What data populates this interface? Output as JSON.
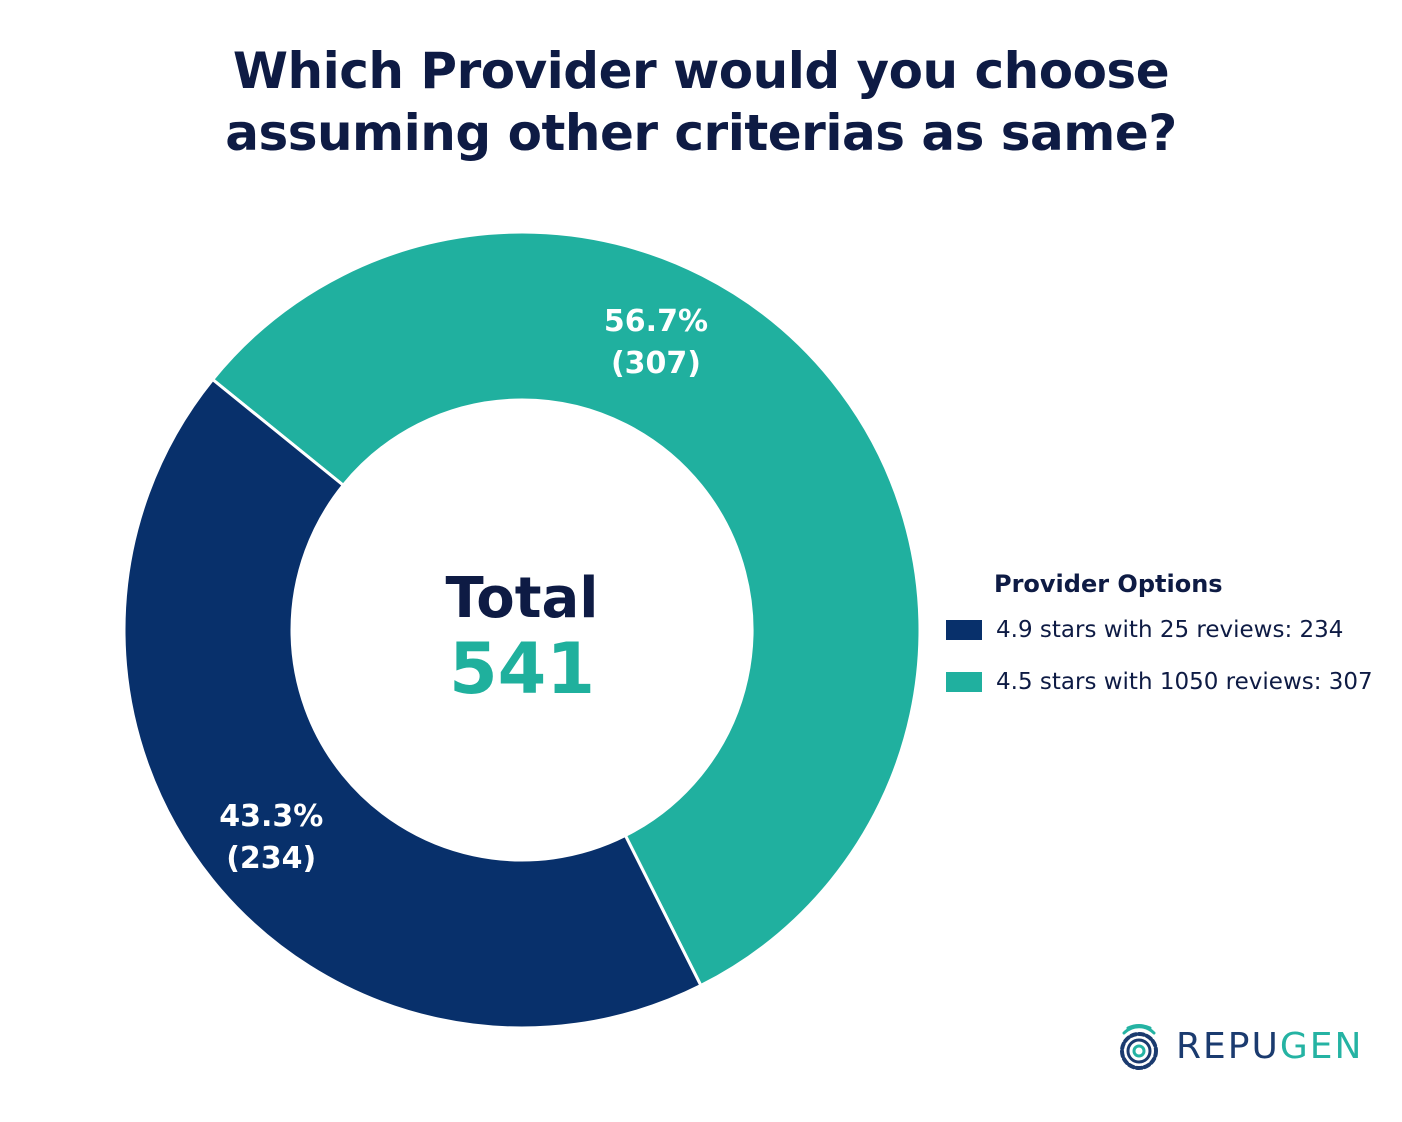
{
  "title_lines": [
    "Which Provider would you choose",
    "assuming other criterias as same?"
  ],
  "chart_data": {
    "type": "pie",
    "title": "Which Provider would you choose assuming other criterias as same?",
    "center_label": "Total",
    "total": 541,
    "legend_title": "Provider Options",
    "legend_placement": "right",
    "slices": [
      {
        "name": "4.9 stars with 25 reviews",
        "value": 234,
        "percent": 43.3,
        "percent_label": "43.3%",
        "count_label": "(234)",
        "legend_label": "4.9 stars with 25 reviews: 234",
        "color": "#08306b"
      },
      {
        "name": "4.5 stars with 1050 reviews",
        "value": 307,
        "percent": 56.7,
        "percent_label": "56.7%",
        "count_label": "(307)",
        "legend_label": "4.5 stars with 1050 reviews: 307",
        "color": "#20b09f"
      }
    ]
  },
  "logo": {
    "brand_part1": "REPU",
    "brand_part2": "GEN",
    "icon": "target-gear-icon"
  }
}
